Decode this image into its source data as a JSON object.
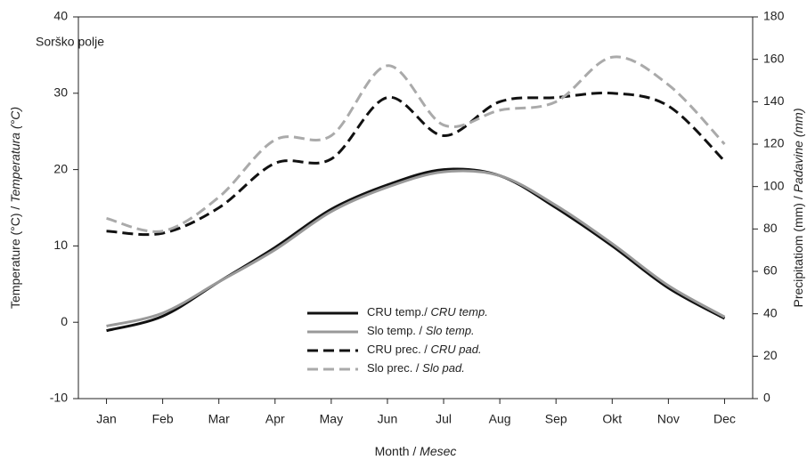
{
  "chart_data": {
    "type": "line",
    "annotation": "Sorško polje",
    "x_label": "Month / Mesec",
    "y_label": "Temperature (°C) / Temperatura (°C)",
    "y2_label": "Precipitatiom (mm) / Padavine (mm)",
    "categories": [
      "Jan",
      "Feb",
      "Mar",
      "Apr",
      "May",
      "Jun",
      "Jul",
      "Aug",
      "Sep",
      "Okt",
      "Nov",
      "Dec"
    ],
    "ylim": [
      -10,
      40
    ],
    "yticks": [
      -10,
      0,
      10,
      20,
      30,
      40
    ],
    "y2lim": [
      0,
      180
    ],
    "y2ticks": [
      0,
      20,
      40,
      60,
      80,
      100,
      120,
      140,
      160,
      180
    ],
    "grid": false,
    "series": [
      {
        "name": "CRU temp./ CRU temp.",
        "color": "#111111",
        "dash": false,
        "values": [
          -1.1,
          0.8,
          5.3,
          9.8,
          14.8,
          18.0,
          20.0,
          19.2,
          15.0,
          10.0,
          4.5,
          0.5
        ]
      },
      {
        "name": "Slo temp. / Slo temp.",
        "color": "#999999",
        "dash": false,
        "values": [
          -0.5,
          1.2,
          5.3,
          9.5,
          14.5,
          17.7,
          19.7,
          19.2,
          15.3,
          10.3,
          4.8,
          0.7
        ]
      },
      {
        "name": "CRU prec. / CRU pad.",
        "color": "#111111",
        "dash": true,
        "axis": "y2",
        "values": [
          79,
          78,
          90,
          111,
          113,
          142,
          124,
          140,
          142,
          144,
          138,
          112
        ]
      },
      {
        "name": "Slo prec. / Slo pad.",
        "color": "#aaaaaa",
        "dash": true,
        "axis": "y2",
        "values": [
          85,
          79,
          95,
          122,
          124,
          157,
          129,
          136,
          140,
          161,
          148,
          120
        ]
      }
    ]
  }
}
